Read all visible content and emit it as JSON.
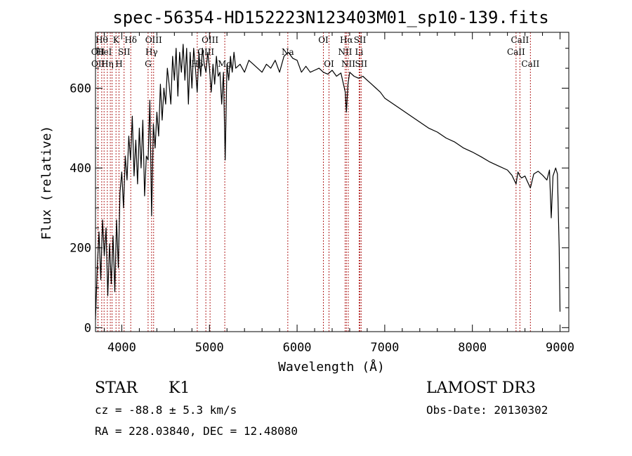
{
  "chart_data": {
    "type": "line",
    "title": "spec-56354-HD152223N123403M01_sp10-139.fits",
    "xlabel": "Wavelength (Å)",
    "ylabel": "Flux (relative)",
    "xlim": [
      3700,
      9100
    ],
    "ylim": [
      -10,
      740
    ],
    "x_ticks": [
      4000,
      5000,
      6000,
      7000,
      8000,
      9000
    ],
    "y_ticks": [
      0,
      200,
      400,
      600
    ],
    "series": [
      {
        "name": "flux",
        "x": [
          3700,
          3720,
          3740,
          3760,
          3780,
          3800,
          3820,
          3840,
          3860,
          3880,
          3900,
          3920,
          3940,
          3960,
          3980,
          4000,
          4020,
          4040,
          4060,
          4080,
          4100,
          4120,
          4140,
          4160,
          4180,
          4200,
          4220,
          4240,
          4260,
          4280,
          4300,
          4320,
          4340,
          4360,
          4380,
          4400,
          4420,
          4440,
          4460,
          4480,
          4500,
          4520,
          4540,
          4560,
          4580,
          4600,
          4620,
          4640,
          4660,
          4680,
          4700,
          4720,
          4740,
          4760,
          4780,
          4800,
          4820,
          4840,
          4860,
          4880,
          4900,
          4920,
          4940,
          4960,
          4980,
          5000,
          5020,
          5040,
          5060,
          5080,
          5100,
          5120,
          5140,
          5160,
          5180,
          5200,
          5220,
          5240,
          5260,
          5280,
          5300,
          5350,
          5400,
          5450,
          5500,
          5550,
          5600,
          5650,
          5700,
          5750,
          5800,
          5850,
          5900,
          5950,
          6000,
          6050,
          6100,
          6150,
          6200,
          6250,
          6300,
          6350,
          6400,
          6450,
          6500,
          6550,
          6563,
          6580,
          6600,
          6650,
          6700,
          6750,
          6800,
          6850,
          6900,
          6950,
          7000,
          7100,
          7200,
          7300,
          7400,
          7500,
          7600,
          7700,
          7800,
          7900,
          8000,
          8100,
          8200,
          8300,
          8400,
          8450,
          8498,
          8520,
          8542,
          8560,
          8600,
          8620,
          8662,
          8700,
          8750,
          8800,
          8850,
          8880,
          8900,
          8920,
          8950,
          8970,
          8990,
          9000
        ],
        "values": [
          20,
          150,
          240,
          120,
          270,
          180,
          250,
          80,
          210,
          110,
          230,
          90,
          270,
          150,
          340,
          390,
          300,
          430,
          370,
          480,
          420,
          530,
          380,
          470,
          360,
          500,
          400,
          520,
          330,
          430,
          420,
          570,
          280,
          510,
          450,
          540,
          480,
          610,
          520,
          600,
          560,
          650,
          610,
          560,
          680,
          620,
          700,
          580,
          690,
          640,
          710,
          620,
          700,
          560,
          690,
          600,
          700,
          650,
          590,
          690,
          630,
          700,
          660,
          640,
          690,
          650,
          590,
          660,
          610,
          680,
          630,
          640,
          560,
          640,
          420,
          660,
          620,
          680,
          640,
          690,
          650,
          660,
          640,
          670,
          660,
          650,
          640,
          660,
          650,
          670,
          640,
          680,
          690,
          675,
          670,
          640,
          655,
          640,
          645,
          650,
          640,
          635,
          645,
          630,
          638,
          590,
          540,
          610,
          640,
          630,
          625,
          630,
          620,
          610,
          600,
          590,
          575,
          560,
          545,
          530,
          515,
          500,
          490,
          475,
          465,
          450,
          440,
          428,
          415,
          405,
          395,
          382,
          360,
          390,
          380,
          375,
          380,
          370,
          350,
          385,
          392,
          382,
          370,
          395,
          275,
          380,
          400,
          385,
          200,
          40
        ]
      }
    ],
    "spectral_lines": [
      {
        "wavelength": 3727,
        "label": "OII",
        "row": 2
      },
      {
        "wavelength": 3729,
        "label": "OII",
        "row": 3
      },
      {
        "wavelength": 3771,
        "label": "Hθ",
        "row": 1
      },
      {
        "wavelength": 3798,
        "label": "HeI",
        "row": 2
      },
      {
        "wavelength": 3835,
        "label": "Hη",
        "row": 3
      },
      {
        "wavelength": 3869,
        "label": "",
        "row": 0
      },
      {
        "wavelength": 3889,
        "label": "",
        "row": 0
      },
      {
        "wavelength": 3934,
        "label": "K",
        "row": 1
      },
      {
        "wavelength": 3968,
        "label": "H",
        "row": 3
      },
      {
        "wavelength": 4026,
        "label": "SII",
        "row": 2
      },
      {
        "wavelength": 4102,
        "label": "Hδ",
        "row": 1
      },
      {
        "wavelength": 4300,
        "label": "G",
        "row": 3
      },
      {
        "wavelength": 4340,
        "label": "Hγ",
        "row": 2
      },
      {
        "wavelength": 4363,
        "label": "OIII",
        "row": 1
      },
      {
        "wavelength": 4861,
        "label": "Hβ",
        "row": 3
      },
      {
        "wavelength": 4959,
        "label": "OIII",
        "row": 2
      },
      {
        "wavelength": 5007,
        "label": "OIII",
        "row": 1
      },
      {
        "wavelength": 5175,
        "label": "Mg",
        "row": 3
      },
      {
        "wavelength": 5894,
        "label": "Na",
        "row": 2
      },
      {
        "wavelength": 6300,
        "label": "OI",
        "row": 1
      },
      {
        "wavelength": 6364,
        "label": "OI",
        "row": 3
      },
      {
        "wavelength": 6548,
        "label": "NII",
        "row": 2
      },
      {
        "wavelength": 6563,
        "label": "Hα",
        "row": 1
      },
      {
        "wavelength": 6584,
        "label": "NII",
        "row": 3
      },
      {
        "wavelength": 6708,
        "label": "Li",
        "row": 2
      },
      {
        "wavelength": 6717,
        "label": "SII",
        "row": 1
      },
      {
        "wavelength": 6731,
        "label": "SII",
        "row": 3
      },
      {
        "wavelength": 8498,
        "label": "CaII",
        "row": 2
      },
      {
        "wavelength": 8542,
        "label": "CaII",
        "row": 1
      },
      {
        "wavelength": 8662,
        "label": "CaII",
        "row": 3
      }
    ]
  },
  "info": {
    "class": "STAR",
    "subclass": "K1",
    "survey": "LAMOST DR3",
    "cz": "cz = -88.8 ± 5.3 km/s",
    "obs_date": "Obs-Date: 20130302",
    "coords": "RA = 228.03840, DEC =  12.48080"
  },
  "colors": {
    "line_marker": "#b22222",
    "spectrum": "#000000",
    "axis": "#000000"
  }
}
